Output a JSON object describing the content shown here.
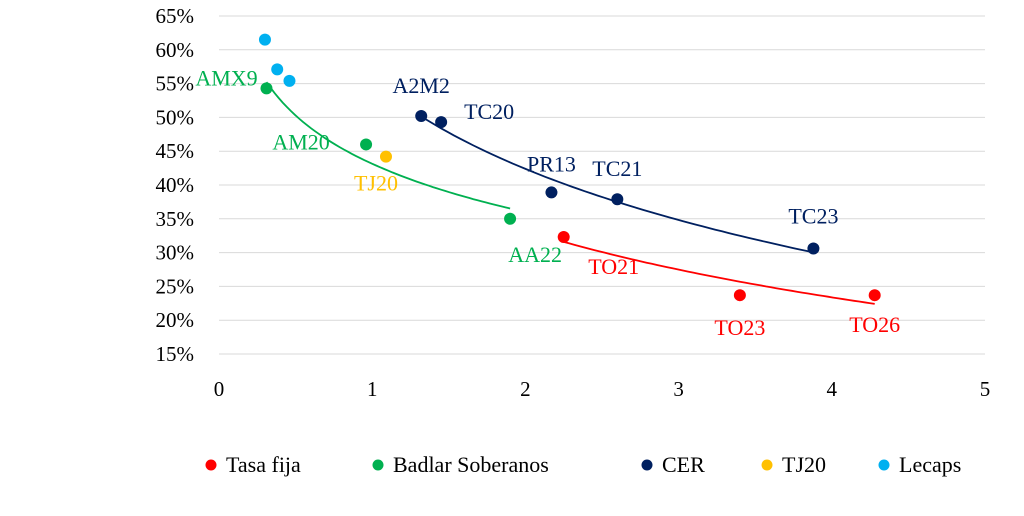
{
  "chart_data": {
    "type": "scatter",
    "title": "",
    "xlabel": "",
    "ylabel": "",
    "xlim": [
      0,
      5
    ],
    "ylim": [
      15,
      65
    ],
    "x_ticks": [
      "0",
      "1",
      "2",
      "3",
      "4",
      "5"
    ],
    "y_ticks": [
      "15%",
      "20%",
      "25%",
      "30%",
      "35%",
      "40%",
      "45%",
      "50%",
      "55%",
      "60%",
      "65%"
    ],
    "grid": "horizontal",
    "legend_position": "bottom",
    "series": [
      {
        "name": "Tasa fija",
        "color": "#ff0000",
        "points": [
          {
            "x": 2.25,
            "y": 32.3,
            "label": "TO21"
          },
          {
            "x": 3.4,
            "y": 23.7,
            "label": "TO23"
          },
          {
            "x": 4.28,
            "y": 23.7,
            "label": "TO26"
          }
        ],
        "trend": {
          "type": "logarithmic",
          "x_range": [
            2.25,
            4.28
          ]
        }
      },
      {
        "name": "Badlar Soberanos",
        "color": "#00b050",
        "points": [
          {
            "x": 0.31,
            "y": 54.3,
            "label": "AMX9"
          },
          {
            "x": 0.96,
            "y": 46.0,
            "label": "AM20"
          },
          {
            "x": 1.9,
            "y": 35.0,
            "label": "AA22"
          }
        ],
        "trend": {
          "type": "logarithmic",
          "x_range": [
            0.31,
            1.9
          ]
        }
      },
      {
        "name": "CER",
        "color": "#002060",
        "points": [
          {
            "x": 1.32,
            "y": 50.2,
            "label": "A2M2"
          },
          {
            "x": 1.45,
            "y": 49.3,
            "label": "TC20"
          },
          {
            "x": 2.17,
            "y": 38.9,
            "label": "PR13"
          },
          {
            "x": 2.6,
            "y": 37.9,
            "label": "TC21"
          },
          {
            "x": 3.88,
            "y": 30.6,
            "label": "TC23"
          }
        ],
        "trend": {
          "type": "logarithmic",
          "x_range": [
            1.32,
            3.88
          ]
        }
      },
      {
        "name": "TJ20",
        "color": "#ffc000",
        "points": [
          {
            "x": 1.09,
            "y": 44.2,
            "label": "TJ20"
          }
        ]
      },
      {
        "name": "Lecaps",
        "color": "#00b0f0",
        "points": [
          {
            "x": 0.3,
            "y": 61.5,
            "label": ""
          },
          {
            "x": 0.38,
            "y": 57.1,
            "label": ""
          },
          {
            "x": 0.46,
            "y": 55.4,
            "label": ""
          }
        ]
      }
    ]
  }
}
